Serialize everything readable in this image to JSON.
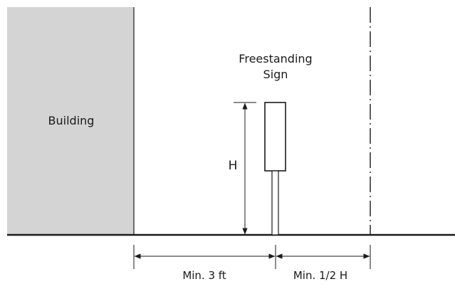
{
  "labels": {
    "building": "Building",
    "sign_line1": "Freestanding",
    "sign_line2": "Sign",
    "height": "H",
    "setback_building": "Min. 3 ft",
    "setback_line": "Min. 1/2 H"
  },
  "colors": {
    "building_fill": "#d4d4d4",
    "stroke": "#1a1a1a",
    "background": "#ffffff"
  },
  "icons": {
    "property_line": "dash-dot-line",
    "dimension_arrow": "double-arrow"
  }
}
